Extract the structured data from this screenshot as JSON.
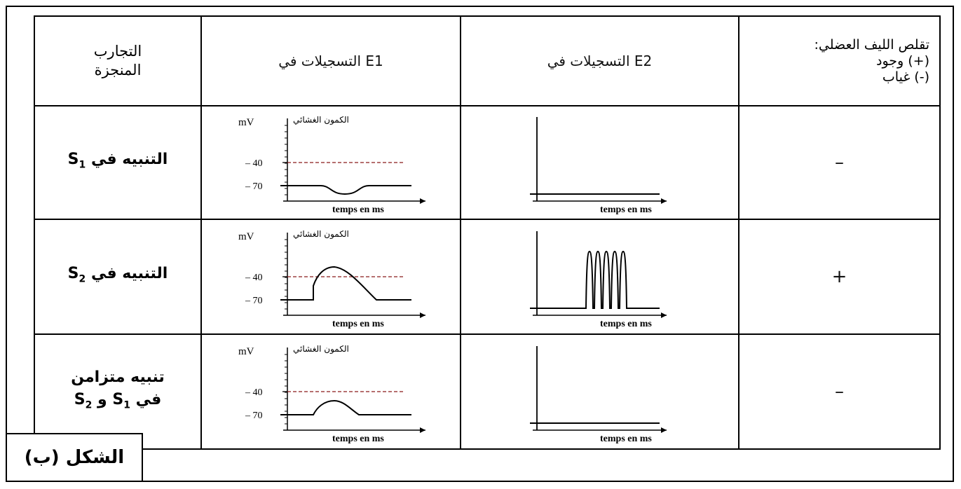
{
  "header": {
    "experiments": [
      "التجارب",
      "المنجزة"
    ],
    "e1": "التسجيلات في E1",
    "e2": "التسجيلات في E2",
    "contraction": [
      "تقلص الليف العضلي:",
      "(+) وجود",
      "(-) غياب"
    ]
  },
  "axis": {
    "y_unit": "mV",
    "y_title": "الكمون الغشائي",
    "x_label": "temps en ms",
    "tick_minus40": "– 40",
    "tick_minus70": "– 70"
  },
  "rows": [
    {
      "label_main": "التنبيه في S",
      "label_sub": "1",
      "contraction": "–",
      "e1_shape": "hyperpolarization",
      "e2_spikes": 0
    },
    {
      "label_main": "التنبيه في S",
      "label_sub": "2",
      "contraction": "+",
      "e1_shape": "depolarization-large",
      "e2_spikes": 5
    },
    {
      "label_line1": "تنبيه متزامن",
      "label_line2": "في S",
      "label_sub1": "1",
      "label_mid": " و S",
      "label_sub2": "2",
      "contraction": "–",
      "e1_shape": "depolarization-small",
      "e2_spikes": 0
    }
  ],
  "caption": "الشكل (ب)",
  "colors": {
    "threshold": "#8b1a1a",
    "line": "#000000"
  }
}
